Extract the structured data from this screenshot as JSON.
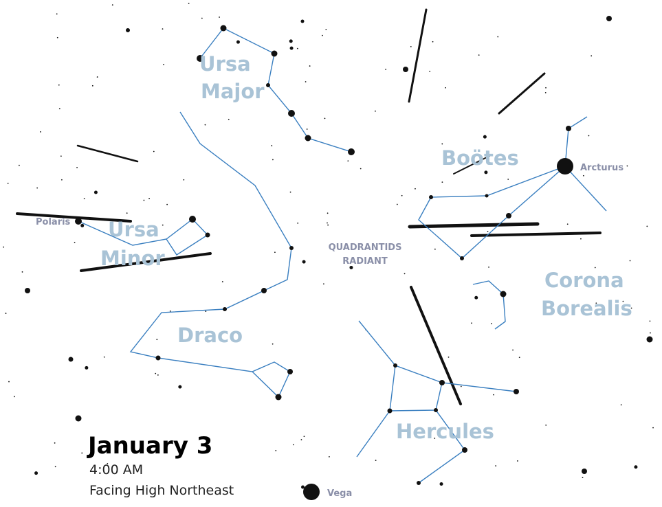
{
  "constellations": [
    {
      "lines": [
        "Ursa",
        "Major"
      ]
    },
    {
      "lines": [
        "Ursa",
        "Minor"
      ]
    },
    {
      "lines": [
        "Draco"
      ]
    },
    {
      "lines": [
        "Boötes"
      ]
    },
    {
      "lines": [
        "Corona",
        "Borealis"
      ]
    },
    {
      "lines": [
        "Hercules"
      ]
    }
  ],
  "stars": [
    "Polaris",
    "Arcturus",
    "Vega"
  ],
  "radiant": [
    "QUADRANTIDS",
    "RADIANT"
  ],
  "caption": {
    "date": "January 3",
    "time": "4:00 AM",
    "facing": "Facing High Northeast"
  }
}
